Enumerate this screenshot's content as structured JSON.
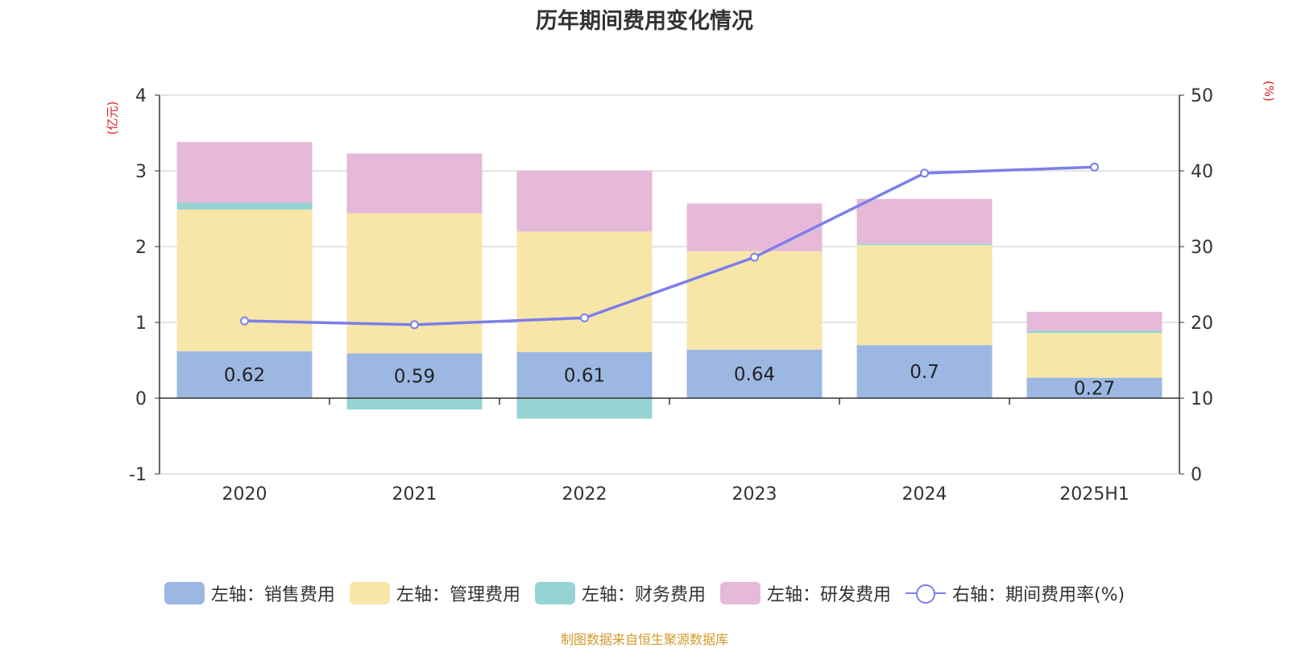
{
  "chart_data": {
    "type": "bar",
    "title": "历年期间费用变化情况",
    "categories": [
      "2020",
      "2021",
      "2022",
      "2023",
      "2024",
      "2025H1"
    ],
    "series": [
      {
        "name": "左轴：销售费用",
        "axis": "left",
        "type": "bar",
        "color": "#9cb8e2",
        "values": [
          0.62,
          0.59,
          0.61,
          0.64,
          0.7,
          0.27
        ]
      },
      {
        "name": "左轴：管理费用",
        "axis": "left",
        "type": "bar",
        "color": "#f7e6a8",
        "values": [
          1.87,
          1.85,
          1.59,
          1.3,
          1.32,
          0.59
        ]
      },
      {
        "name": "左轴：财务费用",
        "axis": "left",
        "type": "bar",
        "color": "#96d4d3",
        "values": [
          0.09,
          -0.15,
          -0.27,
          0.0,
          0.02,
          0.03
        ]
      },
      {
        "name": "左轴：研发费用",
        "axis": "left",
        "type": "bar",
        "color": "#e6b9d9",
        "values": [
          0.8,
          0.79,
          0.8,
          0.63,
          0.59,
          0.25
        ]
      },
      {
        "name": "右轴：期间费用率(%)",
        "axis": "right",
        "type": "line",
        "color": "#7b7fea",
        "values": [
          20.2,
          19.7,
          20.6,
          28.6,
          39.7,
          40.5
        ]
      }
    ],
    "data_labels": [
      "0.62",
      "0.59",
      "0.61",
      "0.64",
      "0.7",
      "0.27"
    ],
    "y_left": {
      "unit": "(亿元)",
      "ylim": [
        -1,
        4
      ],
      "ticks": [
        "-1",
        "0",
        "1",
        "2",
        "3",
        "4"
      ]
    },
    "y_right": {
      "unit": "(%)",
      "ylim": [
        0,
        50
      ],
      "ticks": [
        "0",
        "10",
        "20",
        "30",
        "40",
        "50"
      ]
    },
    "grid": true,
    "legend": "bottom"
  },
  "source": "制图数据来自恒生聚源数据库"
}
